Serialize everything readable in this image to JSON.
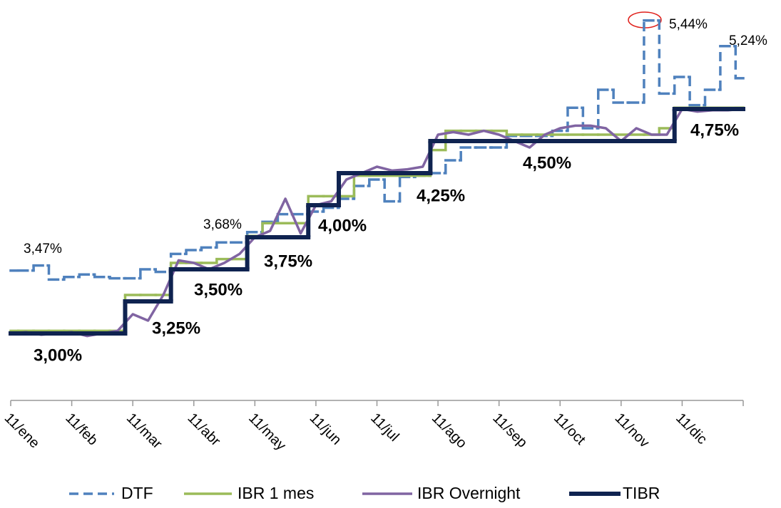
{
  "chart_data": {
    "type": "line",
    "categories": [
      "11/ene",
      null,
      null,
      null,
      "11/feb",
      null,
      null,
      null,
      "11/mar",
      null,
      null,
      null,
      "11/abr",
      null,
      null,
      null,
      "11/may",
      null,
      null,
      null,
      "11/jun",
      null,
      null,
      null,
      "11/jul",
      null,
      null,
      null,
      "11/ago",
      null,
      null,
      null,
      "11/sep",
      null,
      null,
      null,
      "11/oct",
      null,
      null,
      null,
      "11/nov",
      null,
      null,
      null,
      "11/dic",
      null,
      null,
      null,
      null
    ],
    "ylim": [
      2.5,
      5.6
    ],
    "series": [
      {
        "name": "DTF",
        "color": "#4f81bd",
        "dash": true,
        "step": true,
        "values": [
          3.49,
          3.49,
          3.53,
          3.42,
          3.44,
          3.46,
          3.44,
          3.43,
          3.43,
          3.5,
          3.48,
          3.62,
          3.65,
          3.67,
          3.71,
          3.71,
          3.79,
          3.87,
          3.93,
          3.93,
          3.95,
          3.98,
          4.05,
          4.15,
          4.2,
          4.03,
          4.22,
          4.23,
          4.25,
          4.35,
          4.45,
          4.45,
          4.45,
          4.54,
          4.54,
          4.54,
          4.58,
          4.76,
          4.6,
          4.9,
          4.8,
          4.8,
          5.44,
          4.87,
          5.0,
          4.78,
          4.9,
          5.24,
          4.99
        ]
      },
      {
        "name": "IBR 1 mes",
        "color": "#9bbb59",
        "dash": false,
        "step": true,
        "values": [
          3.02,
          3.02,
          3.02,
          3.02,
          3.02,
          3.02,
          3.02,
          3.02,
          3.3,
          3.3,
          3.3,
          3.55,
          3.55,
          3.55,
          3.58,
          3.58,
          3.76,
          3.86,
          3.86,
          3.86,
          4.07,
          4.07,
          4.07,
          4.23,
          4.23,
          4.23,
          4.23,
          4.23,
          4.43,
          4.58,
          4.58,
          4.58,
          4.58,
          4.55,
          4.55,
          4.55,
          4.55,
          4.55,
          4.55,
          4.55,
          4.55,
          4.55,
          4.55,
          4.6,
          4.76,
          4.76,
          4.76,
          4.76,
          4.76
        ]
      },
      {
        "name": "IBR Overnight",
        "color": "#8064a2",
        "dash": false,
        "step": false,
        "values": [
          3.0,
          3.01,
          2.99,
          3.0,
          3.01,
          2.98,
          3.0,
          3.02,
          3.15,
          3.1,
          3.3,
          3.57,
          3.55,
          3.5,
          3.55,
          3.62,
          3.75,
          3.8,
          4.05,
          3.78,
          4.0,
          4.03,
          4.2,
          4.25,
          4.3,
          4.27,
          4.28,
          4.3,
          4.55,
          4.57,
          4.55,
          4.58,
          4.55,
          4.5,
          4.45,
          4.55,
          4.6,
          4.62,
          4.62,
          4.6,
          4.5,
          4.6,
          4.55,
          4.55,
          4.75,
          4.73,
          4.74,
          4.74,
          4.75
        ]
      },
      {
        "name": "TIBR",
        "color": "#0f2350",
        "dash": false,
        "step": true,
        "values": [
          3.0,
          3.0,
          3.0,
          3.0,
          3.0,
          3.0,
          3.0,
          3.0,
          3.25,
          3.25,
          3.25,
          3.5,
          3.5,
          3.5,
          3.5,
          3.5,
          3.75,
          3.75,
          3.75,
          3.75,
          4.0,
          4.0,
          4.25,
          4.25,
          4.25,
          4.25,
          4.25,
          4.25,
          4.5,
          4.5,
          4.5,
          4.5,
          4.5,
          4.5,
          4.5,
          4.5,
          4.5,
          4.5,
          4.5,
          4.5,
          4.5,
          4.5,
          4.5,
          4.5,
          4.75,
          4.75,
          4.75,
          4.75,
          4.75
        ]
      }
    ],
    "annotations": [
      "3,47%",
      "3,68%",
      "5,44%",
      "5,24%",
      "3,00%",
      "3,25%",
      "3,50%",
      "3,75%",
      "4,00%",
      "4,25%",
      "4,50%",
      "4,75%"
    ],
    "legend": "bottom"
  }
}
